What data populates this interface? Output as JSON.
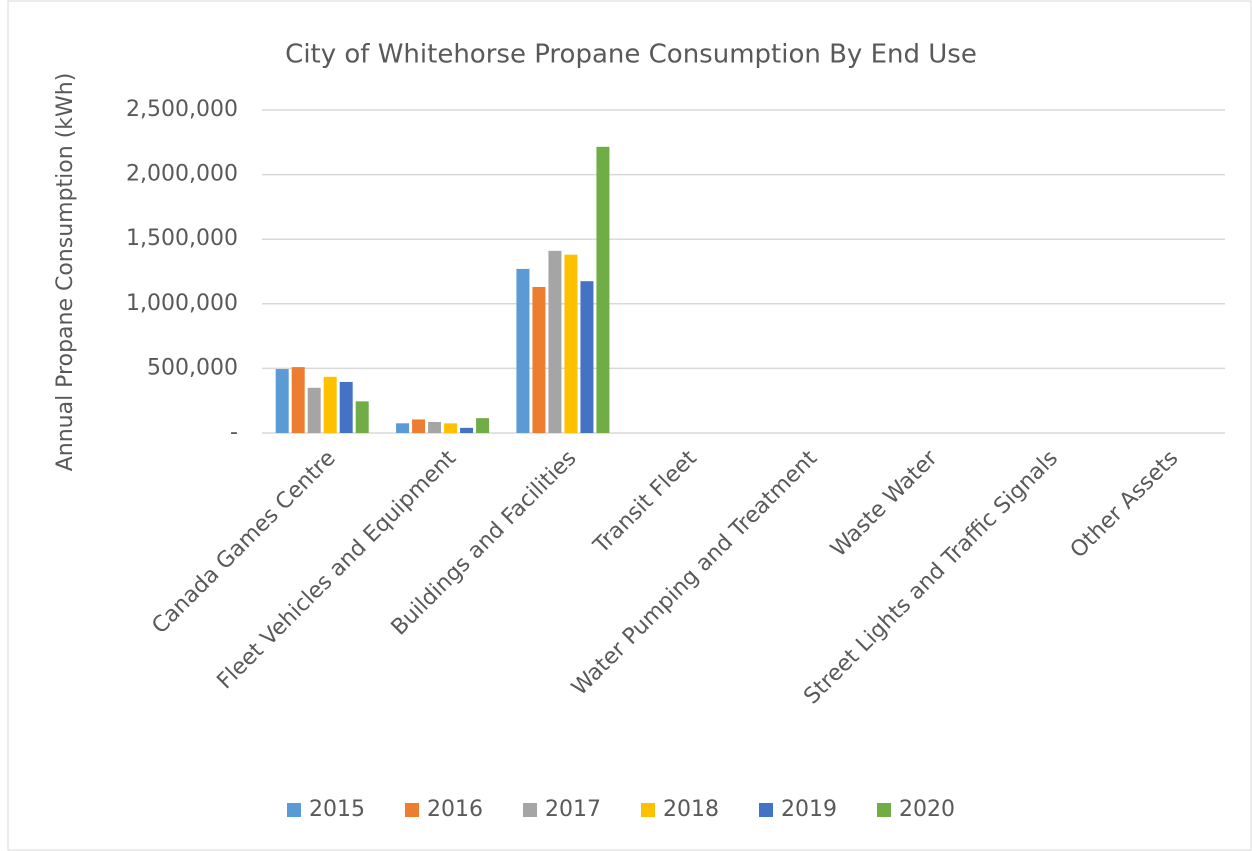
{
  "chart_data": {
    "type": "bar",
    "title": "City of Whitehorse Propane Consumption By End Use",
    "y_label": "Annual Propane Consumption (kWh)",
    "categories": [
      "Canada Games Centre",
      "Fleet Vehicles and Equipment",
      "Buildings and Facilities",
      "Transit Fleet",
      "Water Pumping and Treatment",
      "Waste Water",
      "Street Lights and Traffic Signals",
      "Other Assets"
    ],
    "series": [
      {
        "name": "2015",
        "color": "#5b9bd5",
        "values": [
          495000,
          75000,
          1270000,
          0,
          0,
          0,
          0,
          0
        ]
      },
      {
        "name": "2016",
        "color": "#ed7d31",
        "values": [
          510000,
          105000,
          1130000,
          0,
          0,
          0,
          0,
          0
        ]
      },
      {
        "name": "2017",
        "color": "#a5a5a5",
        "values": [
          350000,
          85000,
          1410000,
          0,
          0,
          0,
          0,
          0
        ]
      },
      {
        "name": "2018",
        "color": "#ffc000",
        "values": [
          435000,
          75000,
          1380000,
          0,
          0,
          0,
          0,
          0
        ]
      },
      {
        "name": "2019",
        "color": "#4472c4",
        "values": [
          395000,
          40000,
          1175000,
          0,
          0,
          0,
          0,
          0
        ]
      },
      {
        "name": "2020",
        "color": "#70ad47",
        "values": [
          245000,
          115000,
          2215000,
          0,
          0,
          0,
          0,
          0
        ]
      }
    ],
    "ylim": [
      0,
      2500000
    ],
    "yticks": [
      {
        "value": 0,
        "label": "-"
      },
      {
        "value": 500000,
        "label": "500,000"
      },
      {
        "value": 1000000,
        "label": "1,000,000"
      },
      {
        "value": 1500000,
        "label": "1,500,000"
      },
      {
        "value": 2000000,
        "label": "2,000,000"
      },
      {
        "value": 2500000,
        "label": "2,500,000"
      }
    ],
    "grid": true,
    "legend": "bottom"
  }
}
